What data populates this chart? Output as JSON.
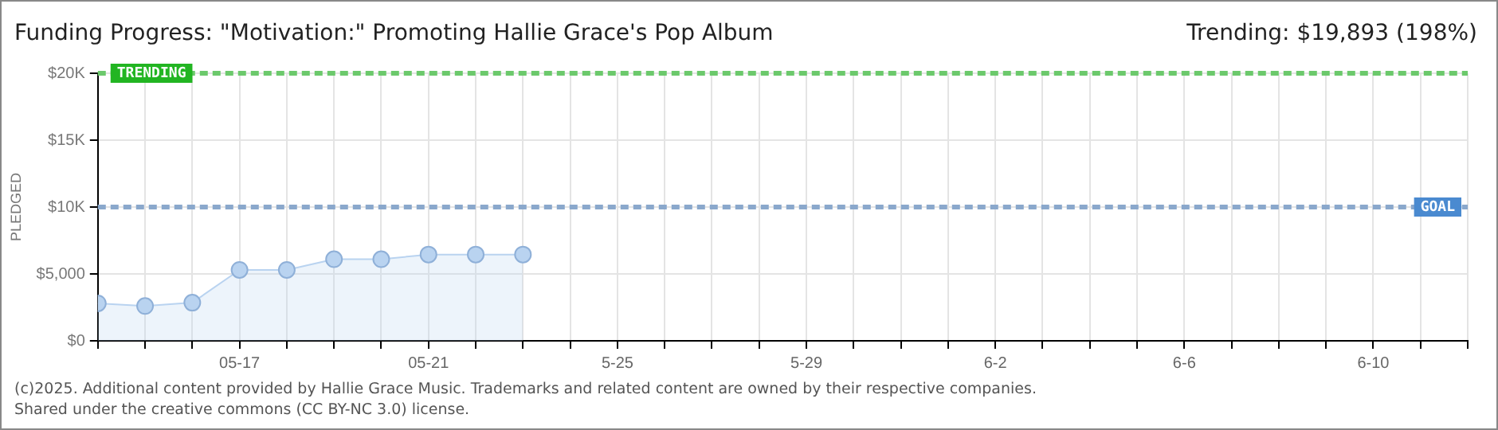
{
  "chart_data": {
    "type": "area",
    "title": "Funding Progress: \"Motivation:\" Promoting Hallie Grace's Pop Album",
    "subtitle": "Trending: $19,893 (198%)",
    "ylabel": "PLEDGED",
    "x": [
      "2025-05-14",
      "2025-05-15",
      "2025-05-16",
      "2025-05-17",
      "2025-05-18",
      "2025-05-19",
      "2025-05-20",
      "2025-05-21",
      "2025-05-22",
      "2025-05-23"
    ],
    "series": [
      {
        "color": "#b9d3f0",
        "values": [
          2800,
          2600,
          2850,
          5300,
          5300,
          6100,
          6100,
          6450,
          6450,
          6450
        ]
      }
    ],
    "marker": "circle",
    "grid": true,
    "legend": false,
    "xlim": [
      "2025-05-14",
      "2025-06-12"
    ],
    "xticks": [
      {
        "value": "2025-05-14",
        "label": null
      },
      {
        "value": "2025-05-15",
        "label": null
      },
      {
        "value": "2025-05-16",
        "label": null
      },
      {
        "value": "2025-05-17",
        "label": "05-17"
      },
      {
        "value": "2025-05-18",
        "label": null
      },
      {
        "value": "2025-05-19",
        "label": null
      },
      {
        "value": "2025-05-20",
        "label": null
      },
      {
        "value": "2025-05-21",
        "label": "05-21"
      },
      {
        "value": "2025-05-22",
        "label": null
      },
      {
        "value": "2025-05-23",
        "label": null
      },
      {
        "value": "2025-05-24",
        "label": null
      },
      {
        "value": "2025-05-25",
        "label": "5-25"
      },
      {
        "value": "2025-05-26",
        "label": null
      },
      {
        "value": "2025-05-27",
        "label": null
      },
      {
        "value": "2025-05-28",
        "label": null
      },
      {
        "value": "2025-05-29",
        "label": "5-29"
      },
      {
        "value": "2025-05-30",
        "label": null
      },
      {
        "value": "2025-05-31",
        "label": null
      },
      {
        "value": "2025-06-01",
        "label": null
      },
      {
        "value": "2025-06-02",
        "label": "6-2"
      },
      {
        "value": "2025-06-03",
        "label": null
      },
      {
        "value": "2025-06-04",
        "label": null
      },
      {
        "value": "2025-06-05",
        "label": null
      },
      {
        "value": "2025-06-06",
        "label": "6-6"
      },
      {
        "value": "2025-06-07",
        "label": null
      },
      {
        "value": "2025-06-08",
        "label": null
      },
      {
        "value": "2025-06-09",
        "label": null
      },
      {
        "value": "2025-06-10",
        "label": "6-10"
      },
      {
        "value": "2025-06-11",
        "label": null
      },
      {
        "value": "2025-06-12",
        "label": null
      }
    ],
    "ylim": [
      0,
      20000
    ],
    "yticks": [
      {
        "value": 0,
        "label": "$0"
      },
      {
        "value": 5000,
        "label": "$5,000"
      },
      {
        "value": 10000,
        "label": "$10K"
      },
      {
        "value": 15000,
        "label": "$15K"
      },
      {
        "value": 20000,
        "label": "$20K"
      }
    ],
    "ref_lines": [
      {
        "axis": "y",
        "value": 20000,
        "label": "TRENDING",
        "color": "#6cc96c",
        "line_style": "dashed"
      },
      {
        "axis": "y",
        "value": 10000,
        "label": "GOAL",
        "color": "#8aa8cc",
        "line_style": "dashed"
      }
    ],
    "annotations": [
      "(c)2025. Additional content provided by Hallie Grace Music. Trademarks and related content are owned by their respective companies.",
      "Shared under the creative commons (CC BY-NC 3.0) license."
    ]
  }
}
